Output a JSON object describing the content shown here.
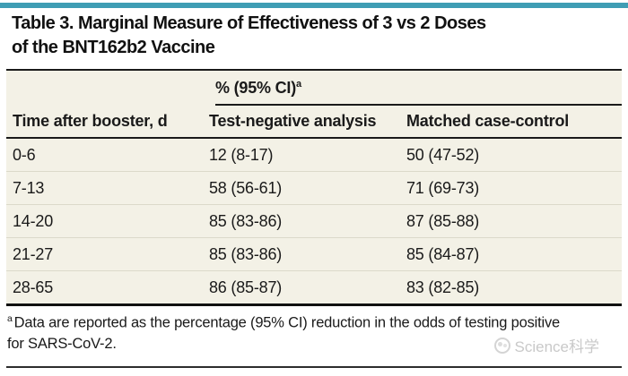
{
  "header": {
    "title_lines": [
      "Table 3. Marginal Measure of Effectiveness of 3 vs 2 Doses",
      "of the BNT162b2 Vaccine"
    ]
  },
  "table": {
    "span_header": "% (95% CI)",
    "span_header_sup": "a",
    "columns": [
      "Time after booster, d",
      "Test-negative analysis",
      "Matched case-control"
    ],
    "rows": [
      {
        "time": "0-6",
        "test_negative": "12 (8-17)",
        "matched": "50 (47-52)"
      },
      {
        "time": "7-13",
        "test_negative": "58 (56-61)",
        "matched": "71 (69-73)"
      },
      {
        "time": "14-20",
        "test_negative": "85 (83-86)",
        "matched": "87 (85-88)"
      },
      {
        "time": "21-27",
        "test_negative": "85 (83-86)",
        "matched": "85 (84-87)"
      },
      {
        "time": "28-65",
        "test_negative": "86 (85-87)",
        "matched": "83 (82-85)"
      }
    ]
  },
  "footnote": {
    "sup": "a",
    "text": "Data are reported as the percentage (95% CI) reduction in the odds of testing positive for SARS-CoV-2."
  },
  "watermark": {
    "text": "Science科学"
  },
  "colors": {
    "accent_teal": "#3f9db4",
    "row_beige": "#f3f1e6",
    "row_separator": "#dbd9ca",
    "rule_black": "#111111",
    "watermark_gray": "#c9c9c9"
  }
}
